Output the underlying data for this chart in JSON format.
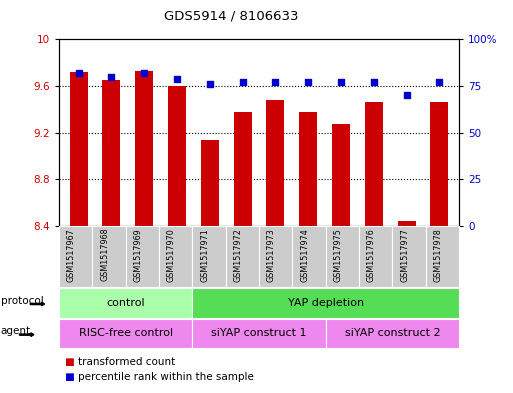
{
  "title": "GDS5914 / 8106633",
  "samples": [
    "GSM1517967",
    "GSM1517968",
    "GSM1517969",
    "GSM1517970",
    "GSM1517971",
    "GSM1517972",
    "GSM1517973",
    "GSM1517974",
    "GSM1517975",
    "GSM1517976",
    "GSM1517977",
    "GSM1517978"
  ],
  "transformed_count": [
    9.72,
    9.65,
    9.73,
    9.6,
    9.14,
    9.38,
    9.48,
    9.38,
    9.27,
    9.46,
    8.44,
    9.46
  ],
  "percentile_rank": [
    82,
    80,
    82,
    79,
    76,
    77,
    77,
    77,
    77,
    77,
    70,
    77
  ],
  "ylim_left": [
    8.4,
    10.0
  ],
  "ylim_right": [
    0,
    100
  ],
  "yticks_left": [
    8.4,
    8.8,
    9.2,
    9.6,
    10.0
  ],
  "ytick_labels_left": [
    "8.4",
    "8.8",
    "9.2",
    "9.6",
    "10"
  ],
  "yticks_right": [
    0,
    25,
    50,
    75,
    100
  ],
  "ytick_labels_right": [
    "0",
    "25",
    "50",
    "75",
    "100%"
  ],
  "bar_color": "#cc0000",
  "dot_color": "#0000cc",
  "protocol_groups": [
    {
      "label": "control",
      "start": 0,
      "end": 3,
      "color": "#aaffaa"
    },
    {
      "label": "YAP depletion",
      "start": 4,
      "end": 11,
      "color": "#55dd55"
    }
  ],
  "agent_groups": [
    {
      "label": "RISC-free control",
      "start": 0,
      "end": 3,
      "color": "#ee88ee"
    },
    {
      "label": "siYAP construct 1",
      "start": 4,
      "end": 7,
      "color": "#ee88ee"
    },
    {
      "label": "siYAP construct 2",
      "start": 8,
      "end": 11,
      "color": "#ee88ee"
    }
  ],
  "protocol_label": "protocol",
  "agent_label": "agent",
  "legend_items": [
    "transformed count",
    "percentile rank within the sample"
  ],
  "bg_color": "#ffffff",
  "tick_label_color_left": "#cc0000",
  "tick_label_color_right": "#0000cc",
  "ticklabel_area_color": "#cccccc"
}
